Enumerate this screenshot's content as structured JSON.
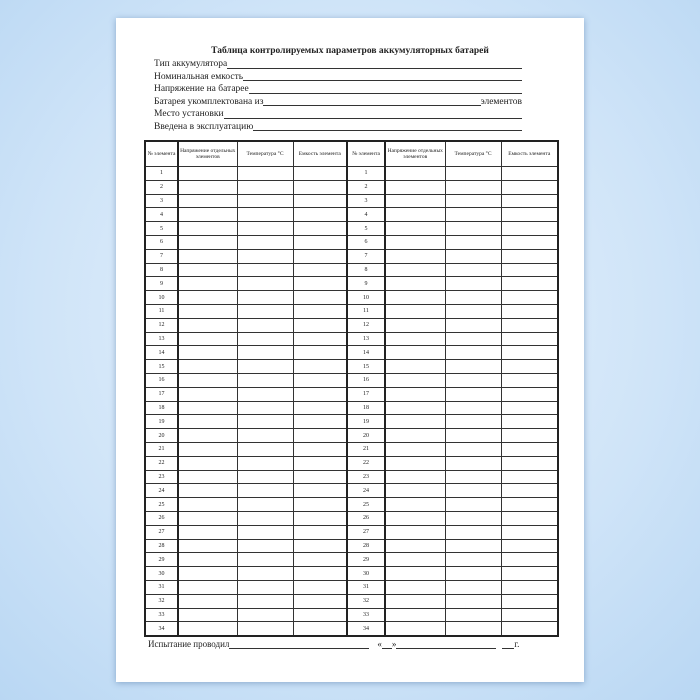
{
  "title": "Таблица контролируемых параметров аккумуляторных батарей",
  "fields": [
    {
      "label": "Тип аккумулятора",
      "suffix": ""
    },
    {
      "label": "Номинальная емкость ",
      "suffix": ""
    },
    {
      "label": "Напряжение на батарее",
      "suffix": ""
    },
    {
      "label": "Батарея укомплектована из ",
      "suffix": "элементов"
    },
    {
      "label": "Место установки",
      "suffix": ""
    },
    {
      "label": "Введена в эксплуатацию",
      "suffix": ""
    }
  ],
  "table": {
    "headers": [
      "№ элемента",
      "Напряжение отдельных элементов",
      "Температура °C",
      "Емкость элемента",
      "№ элемента",
      "Напряжение отдельных элементов",
      "Температура °C",
      "Емкость элемента"
    ],
    "rows": [
      1,
      2,
      3,
      4,
      5,
      6,
      7,
      8,
      9,
      10,
      11,
      12,
      13,
      14,
      15,
      16,
      17,
      18,
      19,
      20,
      21,
      22,
      23,
      24,
      25,
      26,
      27,
      28,
      29,
      30,
      31,
      32,
      33,
      34
    ]
  },
  "footer": {
    "label": "Испытание проводил",
    "quote_open": "«",
    "quote_close": "»",
    "year_suffix": "г."
  }
}
